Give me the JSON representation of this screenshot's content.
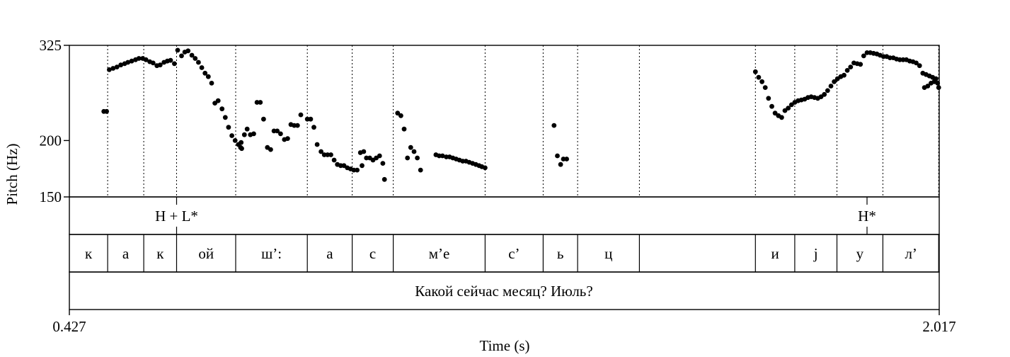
{
  "chart_data": {
    "type": "scatter",
    "title": "",
    "xlabel": "Time (s)",
    "ylabel": "Pitch (Hz)",
    "xlim": [
      0.427,
      2.017
    ],
    "ylim": [
      150,
      325
    ],
    "y_scale": "log",
    "x_tick_labels": [
      "0.427",
      "2.017"
    ],
    "y_ticks": [
      325,
      200,
      150
    ],
    "y_tick_labels": [
      "325",
      "200",
      "150"
    ],
    "grid": false,
    "legend": "none",
    "point_color": "#000000",
    "boundaries": [
      0.497,
      0.563,
      0.623,
      0.731,
      0.862,
      0.944,
      1.019,
      1.187,
      1.293,
      1.356,
      1.469,
      1.681,
      1.753,
      1.83,
      1.914,
      2.016
    ],
    "tone_tier": [
      {
        "label": "H + L*",
        "t": 0.623
      },
      {
        "label": "H*",
        "t": 1.885
      }
    ],
    "segment_tier": [
      {
        "label": "к",
        "start": 0.427,
        "end": 0.497
      },
      {
        "label": "а",
        "start": 0.497,
        "end": 0.563
      },
      {
        "label": "к",
        "start": 0.563,
        "end": 0.623
      },
      {
        "label": "ой",
        "start": 0.623,
        "end": 0.731
      },
      {
        "label": "ш’:",
        "start": 0.731,
        "end": 0.862
      },
      {
        "label": "а",
        "start": 0.862,
        "end": 0.944
      },
      {
        "label": "с",
        "start": 0.944,
        "end": 1.019
      },
      {
        "label": "м’е",
        "start": 1.019,
        "end": 1.187
      },
      {
        "label": "с’",
        "start": 1.187,
        "end": 1.293
      },
      {
        "label": "ь",
        "start": 1.293,
        "end": 1.356
      },
      {
        "label": "ц",
        "start": 1.356,
        "end": 1.469
      },
      {
        "label": "",
        "start": 1.469,
        "end": 1.681
      },
      {
        "label": "и",
        "start": 1.681,
        "end": 1.753
      },
      {
        "label": "j",
        "start": 1.753,
        "end": 1.83
      },
      {
        "label": "у",
        "start": 1.83,
        "end": 1.914
      },
      {
        "label": "л’",
        "start": 1.914,
        "end": 2.017
      }
    ],
    "sentence_tier": "Какой сейчас месяц? Июль?",
    "points": [
      [
        0.49,
        232
      ],
      [
        0.495,
        232
      ],
      [
        0.5,
        287
      ],
      [
        0.507,
        289
      ],
      [
        0.514,
        291
      ],
      [
        0.521,
        294
      ],
      [
        0.528,
        296
      ],
      [
        0.534,
        298
      ],
      [
        0.541,
        300
      ],
      [
        0.548,
        302
      ],
      [
        0.554,
        304
      ],
      [
        0.561,
        304
      ],
      [
        0.567,
        302
      ],
      [
        0.574,
        299
      ],
      [
        0.58,
        297
      ],
      [
        0.587,
        293
      ],
      [
        0.593,
        294
      ],
      [
        0.6,
        298
      ],
      [
        0.606,
        300
      ],
      [
        0.612,
        301
      ],
      [
        0.619,
        296
      ],
      [
        0.625,
        317
      ],
      [
        0.632,
        308
      ],
      [
        0.638,
        314
      ],
      [
        0.644,
        316
      ],
      [
        0.651,
        309
      ],
      [
        0.657,
        304
      ],
      [
        0.663,
        298
      ],
      [
        0.669,
        290
      ],
      [
        0.675,
        282
      ],
      [
        0.681,
        277
      ],
      [
        0.687,
        268
      ],
      [
        0.693,
        242
      ],
      [
        0.699,
        245
      ],
      [
        0.706,
        235
      ],
      [
        0.712,
        225
      ],
      [
        0.718,
        214
      ],
      [
        0.724,
        205
      ],
      [
        0.73,
        200
      ],
      [
        0.736,
        196
      ],
      [
        0.741,
        198
      ],
      [
        0.747,
        206
      ],
      [
        0.752,
        212
      ],
      [
        0.758,
        206
      ],
      [
        0.764,
        207
      ],
      [
        0.74,
        193
      ],
      [
        0.742,
        192
      ],
      [
        0.77,
        243
      ],
      [
        0.776,
        243
      ],
      [
        0.782,
        223
      ],
      [
        0.789,
        193
      ],
      [
        0.795,
        191
      ],
      [
        0.801,
        210
      ],
      [
        0.807,
        210
      ],
      [
        0.813,
        207
      ],
      [
        0.82,
        201
      ],
      [
        0.826,
        202
      ],
      [
        0.832,
        217
      ],
      [
        0.838,
        216
      ],
      [
        0.844,
        216
      ],
      [
        0.85,
        228
      ],
      [
        0.862,
        223
      ],
      [
        0.868,
        223
      ],
      [
        0.874,
        214
      ],
      [
        0.88,
        196
      ],
      [
        0.887,
        189
      ],
      [
        0.893,
        186
      ],
      [
        0.899,
        186
      ],
      [
        0.905,
        186
      ],
      [
        0.911,
        181
      ],
      [
        0.917,
        177
      ],
      [
        0.923,
        176
      ],
      [
        0.929,
        176
      ],
      [
        0.935,
        174
      ],
      [
        0.941,
        173
      ],
      [
        0.947,
        172
      ],
      [
        0.953,
        172
      ],
      [
        0.959,
        188
      ],
      [
        0.965,
        189
      ],
      [
        0.962,
        176
      ],
      [
        0.97,
        183
      ],
      [
        0.976,
        183
      ],
      [
        0.982,
        181
      ],
      [
        0.988,
        183
      ],
      [
        0.994,
        185
      ],
      [
        1.0,
        178
      ],
      [
        1.003,
        164
      ],
      [
        1.027,
        230
      ],
      [
        1.033,
        227
      ],
      [
        1.039,
        212
      ],
      [
        1.045,
        183
      ],
      [
        1.051,
        193
      ],
      [
        1.057,
        189
      ],
      [
        1.063,
        183
      ],
      [
        1.069,
        172
      ],
      [
        1.097,
        186
      ],
      [
        1.103,
        185
      ],
      [
        1.109,
        185
      ],
      [
        1.116,
        184
      ],
      [
        1.122,
        184
      ],
      [
        1.128,
        183
      ],
      [
        1.134,
        182
      ],
      [
        1.14,
        181
      ],
      [
        1.146,
        180
      ],
      [
        1.152,
        180
      ],
      [
        1.158,
        179
      ],
      [
        1.164,
        178
      ],
      [
        1.17,
        177
      ],
      [
        1.176,
        176
      ],
      [
        1.181,
        175
      ],
      [
        1.187,
        174
      ],
      [
        1.313,
        216
      ],
      [
        1.319,
        185
      ],
      [
        1.325,
        177
      ],
      [
        1.33,
        182
      ],
      [
        1.336,
        182
      ],
      [
        1.681,
        284
      ],
      [
        1.687,
        276
      ],
      [
        1.693,
        270
      ],
      [
        1.699,
        262
      ],
      [
        1.705,
        248
      ],
      [
        1.711,
        238
      ],
      [
        1.717,
        230
      ],
      [
        1.723,
        227
      ],
      [
        1.729,
        225
      ],
      [
        1.735,
        233
      ],
      [
        1.741,
        236
      ],
      [
        1.747,
        240
      ],
      [
        1.753,
        243
      ],
      [
        1.759,
        245
      ],
      [
        1.765,
        246
      ],
      [
        1.771,
        247
      ],
      [
        1.777,
        249
      ],
      [
        1.783,
        250
      ],
      [
        1.789,
        249
      ],
      [
        1.795,
        248
      ],
      [
        1.801,
        250
      ],
      [
        1.807,
        253
      ],
      [
        1.813,
        258
      ],
      [
        1.819,
        264
      ],
      [
        1.825,
        270
      ],
      [
        1.831,
        274
      ],
      [
        1.837,
        277
      ],
      [
        1.843,
        279
      ],
      [
        1.849,
        286
      ],
      [
        1.855,
        291
      ],
      [
        1.861,
        297
      ],
      [
        1.867,
        296
      ],
      [
        1.873,
        295
      ],
      [
        1.879,
        308
      ],
      [
        1.885,
        313
      ],
      [
        1.891,
        313
      ],
      [
        1.897,
        312
      ],
      [
        1.903,
        311
      ],
      [
        1.909,
        309
      ],
      [
        1.915,
        307
      ],
      [
        1.921,
        307
      ],
      [
        1.927,
        305
      ],
      [
        1.933,
        305
      ],
      [
        1.939,
        303
      ],
      [
        1.945,
        302
      ],
      [
        1.951,
        302
      ],
      [
        1.957,
        302
      ],
      [
        1.963,
        300
      ],
      [
        1.969,
        299
      ],
      [
        1.975,
        297
      ],
      [
        1.981,
        293
      ],
      [
        1.987,
        282
      ],
      [
        1.993,
        280
      ],
      [
        1.999,
        278
      ],
      [
        2.005,
        276
      ],
      [
        2.011,
        274
      ],
      [
        2.016,
        262
      ],
      [
        1.99,
        262
      ],
      [
        1.996,
        264
      ],
      [
        2.002,
        268
      ],
      [
        2.008,
        270
      ],
      [
        2.014,
        268
      ]
    ]
  }
}
